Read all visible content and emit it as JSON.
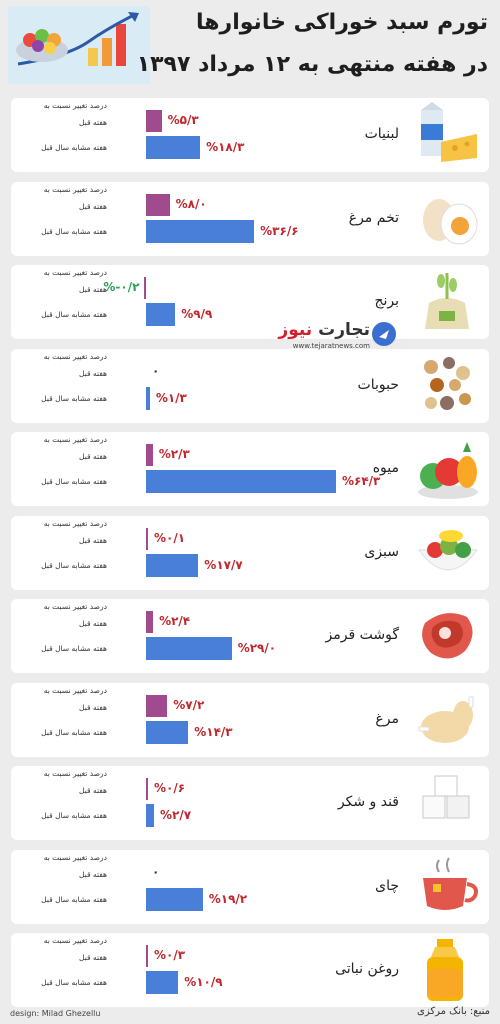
{
  "header": {
    "title_line1": "تورم سبد خوراکی خانوارها",
    "title_line2": "در هفته منتهی به ۱۲ مرداد ۱۳۹۷"
  },
  "legend": {
    "line1": "درصد تغییر نسبت به",
    "prev_week": "هفته قبل",
    "prev_year": "هفته مشابه سال قبل"
  },
  "chart_data": {
    "type": "bar",
    "orientation": "horizontal",
    "series_names": [
      "هفته قبل",
      "هفته مشابه سال قبل"
    ],
    "colors": {
      "prev_week": "#a04b8e",
      "prev_year": "#4a7fd9",
      "value_text": "#c0282e",
      "negative_text": "#2a9d57"
    },
    "categories": [
      "لبنیات",
      "تخم مرغ",
      "برنج",
      "حبوبات",
      "میوه",
      "سبزی",
      "گوشت قرمز",
      "مرغ",
      "قند و شکر",
      "چای",
      "روغن نباتی"
    ],
    "items": [
      {
        "name": "لبنیات",
        "icon": "dairy-icon",
        "prev_week": 5.3,
        "prev_week_label": "%۵/۳",
        "prev_year": 18.3,
        "prev_year_label": "%۱۸/۳"
      },
      {
        "name": "تخم مرغ",
        "icon": "egg-icon",
        "prev_week": 8.0,
        "prev_week_label": "%۸/۰",
        "prev_year": 36.6,
        "prev_year_label": "%۳۶/۶"
      },
      {
        "name": "برنج",
        "icon": "rice-icon",
        "prev_week": -0.2,
        "prev_week_label": "%-۰/۲",
        "prev_year": 9.9,
        "prev_year_label": "%۹/۹"
      },
      {
        "name": "حبوبات",
        "icon": "legumes-icon",
        "prev_week": 0,
        "prev_week_label": "۰",
        "prev_year": 1.3,
        "prev_year_label": "%۱/۳"
      },
      {
        "name": "میوه",
        "icon": "fruit-icon",
        "prev_week": 2.3,
        "prev_week_label": "%۲/۳",
        "prev_year": 64.3,
        "prev_year_label": "%۶۴/۳"
      },
      {
        "name": "سبزی",
        "icon": "vegetables-icon",
        "prev_week": 0.1,
        "prev_week_label": "%۰/۱",
        "prev_year": 17.7,
        "prev_year_label": "%۱۷/۷"
      },
      {
        "name": "گوشت قرمز",
        "icon": "red-meat-icon",
        "prev_week": 2.4,
        "prev_week_label": "%۲/۴",
        "prev_year": 29.0,
        "prev_year_label": "%۲۹/۰"
      },
      {
        "name": "مرغ",
        "icon": "chicken-icon",
        "prev_week": 7.2,
        "prev_week_label": "%۷/۲",
        "prev_year": 14.3,
        "prev_year_label": "%۱۴/۳"
      },
      {
        "name": "قند و شکر",
        "icon": "sugar-cubes-icon",
        "prev_week": 0.6,
        "prev_week_label": "%۰/۶",
        "prev_year": 2.7,
        "prev_year_label": "%۲/۷"
      },
      {
        "name": "چای",
        "icon": "tea-cup-icon",
        "prev_week": 0,
        "prev_week_label": "۰",
        "prev_year": 19.2,
        "prev_year_label": "%۱۹/۲"
      },
      {
        "name": "روغن نباتی",
        "icon": "oil-bottle-icon",
        "prev_week": 0.3,
        "prev_week_label": "%۰/۳",
        "prev_year": 10.9,
        "prev_year_label": "%۱۰/۹"
      }
    ]
  },
  "watermark": {
    "name_dark": "تجارت",
    "name_red": "نیوز",
    "url": "www.tejaratnews.com"
  },
  "footer": {
    "design": "design: Milad Ghezellu",
    "source": "منبع: بانک مرکزی"
  }
}
